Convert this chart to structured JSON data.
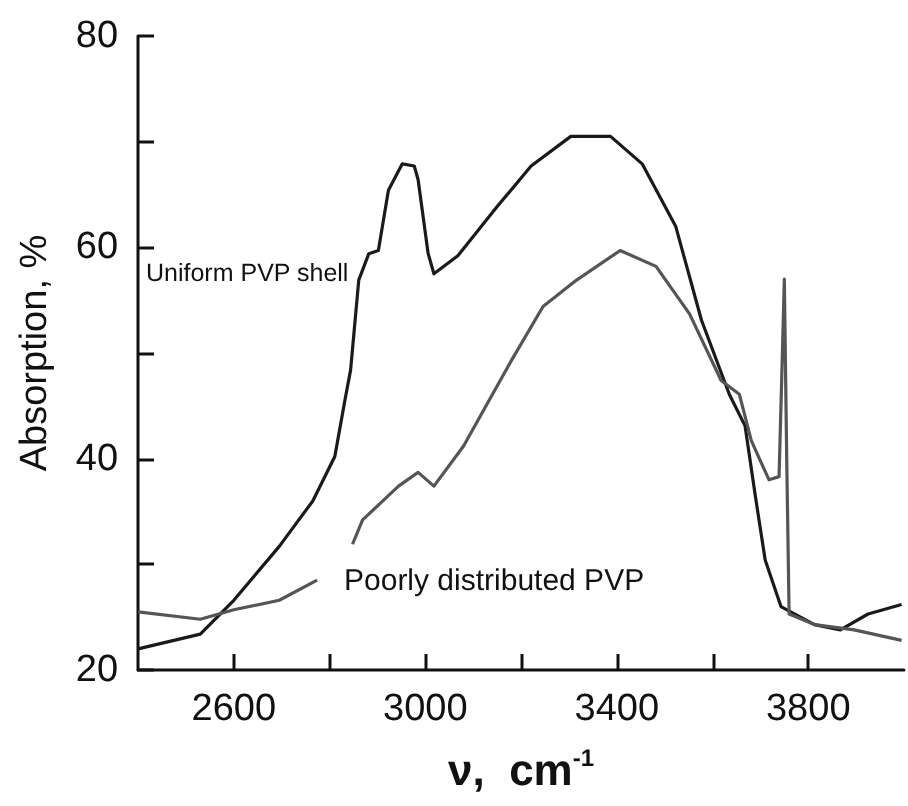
{
  "chart_data": {
    "type": "line",
    "xlabel": "ν,  cm$^{-1}$",
    "ylabel": "Absorption, %",
    "xlim": [
      2400,
      4000
    ],
    "ylim": [
      20,
      80
    ],
    "xticks": [
      2600,
      {
        "value": 2800,
        "label": null
      },
      3000,
      {
        "value": 3200,
        "label": null
      },
      3400,
      {
        "value": 3600,
        "label": null
      },
      3800
    ],
    "yticks": [
      20,
      {
        "value": 30,
        "label": null
      },
      40,
      {
        "value": 50,
        "label": null
      },
      60,
      {
        "value": 70,
        "label": null
      },
      80
    ],
    "grid": false,
    "legend": false,
    "marker": "none",
    "line_style": "solid",
    "series": [
      {
        "name": "Uniform PVP shell",
        "color": "#1a1a1a",
        "x": [
          2400,
          2530,
          2600,
          2695,
          2765,
          2811,
          2832,
          2844,
          2861,
          2882,
          2902,
          2923,
          2952,
          2977,
          2985,
          3006,
          3018,
          3068,
          3151,
          3221,
          3304,
          3387,
          3453,
          3523,
          3577,
          3635,
          3668,
          3689,
          3710,
          3743,
          3813,
          3867,
          3925,
          3995
        ],
        "values": [
          22,
          23.4,
          26.6,
          31.7,
          36,
          40.2,
          45.5,
          48.4,
          56.9,
          59.4,
          59.7,
          65.4,
          67.9,
          67.7,
          66.4,
          59.4,
          57.5,
          59.2,
          63.9,
          67.7,
          70.5,
          70.5,
          67.9,
          62,
          53.1,
          46.1,
          43.1,
          36.6,
          30.4,
          26,
          24.3,
          23.8,
          25.3,
          26.2
        ]
      },
      {
        "name": "Poorly distributed PVP",
        "color": "#555555",
        "x": [
          2400,
          2530,
          2600,
          2695,
          2774,
          2810,
          2848,
          2869,
          2944,
          2985,
          3018,
          3080,
          3180,
          3246,
          3316,
          3407,
          3482,
          3552,
          3618,
          3656,
          3681,
          3718,
          3739,
          3746,
          3750,
          3755,
          3760,
          3813,
          3896,
          3995
        ],
        "values": [
          25.5,
          24.8,
          25.7,
          26.6,
          28.5,
          null,
          31.9,
          34.2,
          37.4,
          38.7,
          37.4,
          41.2,
          49.3,
          54.4,
          56.9,
          59.7,
          58.2,
          53.7,
          47.4,
          46.1,
          41.7,
          38,
          38.3,
          50,
          57,
          40,
          25.3,
          24.3,
          23.8,
          22.8
        ]
      }
    ]
  }
}
